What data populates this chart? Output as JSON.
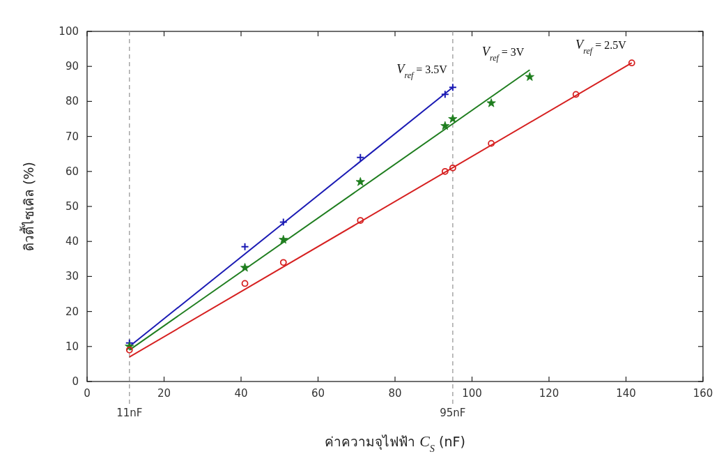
{
  "chart_data": {
    "type": "scatter",
    "xlabel": "ค่าความจุไฟฟ้า C$_{S}$ (nF)",
    "ylabel": "ดิวตี้ไซเคิล (%)",
    "xlim": [
      0,
      160
    ],
    "xticks": [
      0,
      20,
      40,
      60,
      80,
      100,
      120,
      140,
      160
    ],
    "ylim": [
      0,
      100
    ],
    "yticks": [
      0,
      10,
      20,
      30,
      40,
      50,
      60,
      70,
      80,
      90,
      100
    ],
    "grid": false,
    "series": [
      {
        "marker": "cross",
        "color": "#1a1ab4",
        "x": [
          11,
          41,
          51,
          71,
          93,
          95
        ],
        "values": [
          11,
          38.5,
          45.5,
          64,
          82,
          84
        ]
      },
      {
        "marker": "star",
        "color": "#1e7d1e",
        "x": [
          11,
          41,
          51,
          71,
          93,
          95,
          105,
          115
        ],
        "values": [
          10,
          32.5,
          40.5,
          57,
          73,
          75,
          79.5,
          87
        ]
      },
      {
        "marker": "circle",
        "color": "#d62020",
        "x": [
          11,
          41,
          51,
          71,
          93,
          95,
          105,
          127,
          141.5
        ],
        "values": [
          9,
          28,
          34,
          46,
          60,
          61,
          68,
          82,
          91
        ]
      },
      {
        "type": "line",
        "marker": "none",
        "name": "V$_{ref}$ = 3.5V",
        "color": "#1a1ab4",
        "x": [
          11,
          95
        ],
        "values": [
          10,
          84
        ]
      },
      {
        "type": "line",
        "marker": "none",
        "name": "V$_{ref}$ = 3V",
        "color": "#1e7d1e",
        "x": [
          11,
          115
        ],
        "values": [
          9,
          89
        ]
      },
      {
        "type": "line",
        "marker": "none",
        "name": "V$_{ref}$ = 2.5V",
        "color": "#d62020",
        "x": [
          11,
          141.5
        ],
        "values": [
          7,
          91
        ]
      }
    ],
    "ref_lines": [
      {
        "axis": "x",
        "value": 11,
        "label": "11nF",
        "color": "#999999",
        "line_style": "dashed"
      },
      {
        "axis": "x",
        "value": 95,
        "label": "95nF",
        "color": "#999999",
        "line_style": "dashed"
      }
    ]
  }
}
